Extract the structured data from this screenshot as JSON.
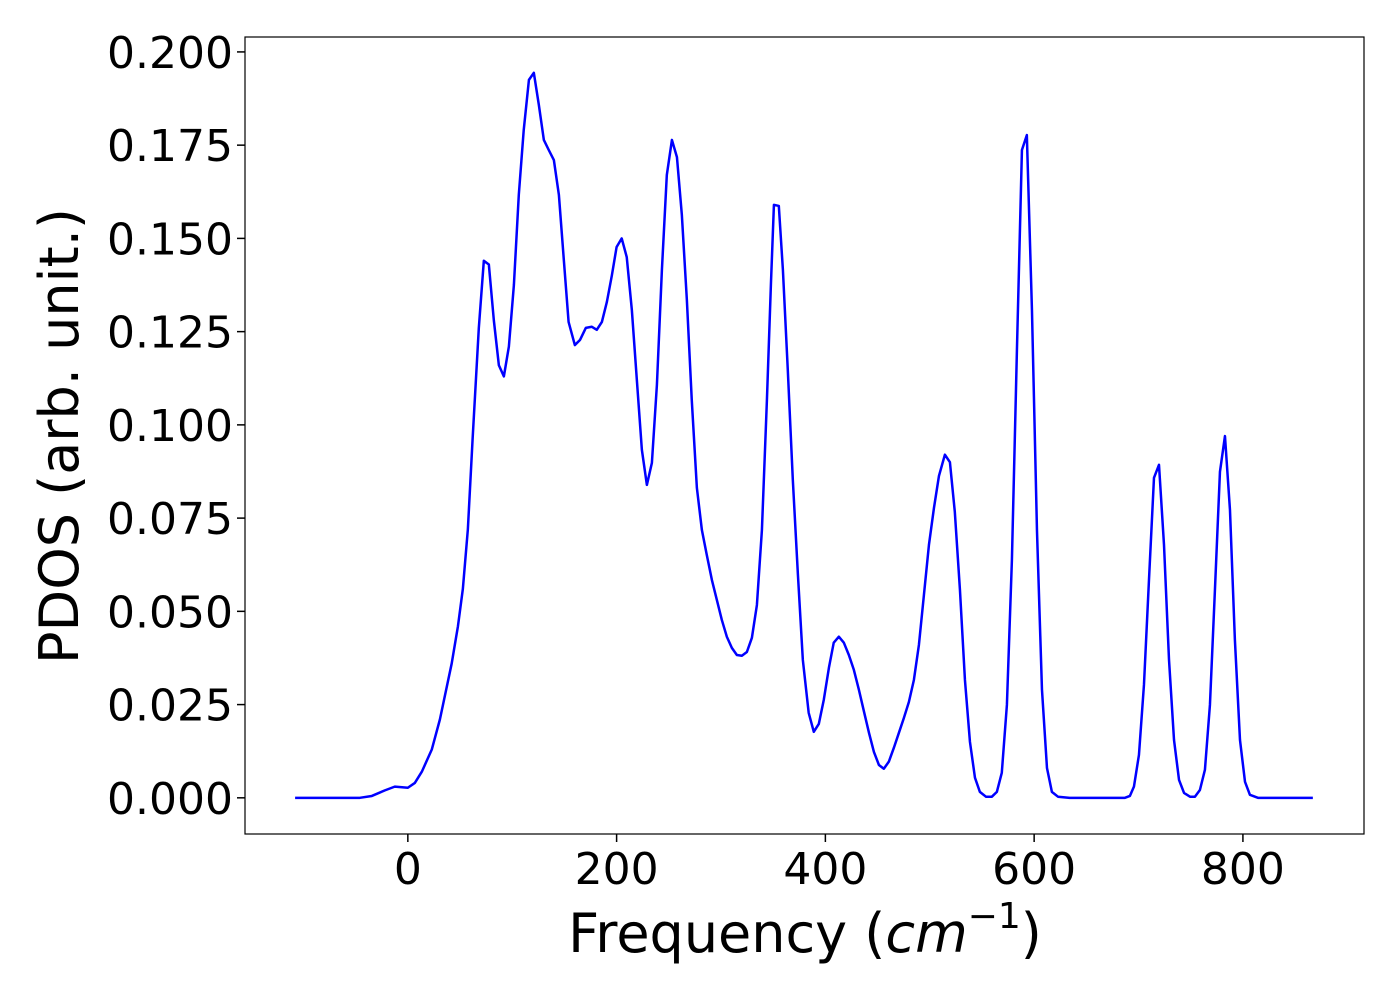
{
  "chart_data": {
    "type": "line",
    "xlabel": [
      "Frequency (",
      "cm",
      "−1",
      ")"
    ],
    "ylabel": "PDOS (arb. unit.)",
    "color": "#0000ff",
    "xlim": [
      -156,
      916
    ],
    "ylim": [
      -0.0097,
      0.204
    ],
    "xticks": [
      0,
      200,
      400,
      600,
      800
    ],
    "yticks": [
      {
        "value": 0,
        "label": "0.000"
      },
      {
        "value": 0.025,
        "label": "0.025"
      },
      {
        "value": 0.05,
        "label": "0.050"
      },
      {
        "value": 0.075,
        "label": "0.075"
      },
      {
        "value": 0.1,
        "label": "0.100"
      },
      {
        "value": 0.125,
        "label": "0.125"
      },
      {
        "value": 0.15,
        "label": "0.150"
      },
      {
        "value": 0.175,
        "label": "0.175"
      },
      {
        "value": 0.2,
        "label": "0.200"
      }
    ],
    "x": [
      -108,
      -46,
      -34.5,
      -22,
      -12.5,
      0,
      6.7,
      13.4,
      23,
      30.7,
      42,
      48,
      52.7,
      57.5,
      62,
      68,
      72.8,
      77.6,
      82.4,
      87.2,
      92,
      96.8,
      101.6,
      106.3,
      111,
      116,
      120.7,
      125.5,
      130.3,
      135,
      139.9,
      144.7,
      149.5,
      154,
      160,
      165,
      170.5,
      176.3,
      181,
      185.9,
      190.7,
      195.4,
      200,
      204.9,
      209.7,
      214.6,
      219.4,
      224.2,
      229,
      233.8,
      238.6,
      243.4,
      248.1,
      253,
      257.8,
      262.5,
      267.3,
      272,
      276.9,
      281.7,
      286.4,
      291.3,
      296,
      300.8,
      305.6,
      310.4,
      315.2,
      320,
      324.8,
      329.6,
      334.4,
      339.2,
      344,
      347.8,
      350.7,
      355.4,
      359.3,
      364,
      368.8,
      373.7,
      378.4,
      384,
      388.9,
      393.7,
      398.5,
      403.4,
      408,
      412.9,
      417.7,
      422.5,
      427.3,
      432.1,
      437,
      441.8,
      446.5,
      451.3,
      456,
      460.8,
      465.6,
      470.4,
      475.2,
      480,
      484.8,
      489.6,
      494.4,
      499.2,
      504,
      508.8,
      514.5,
      519.3,
      524,
      528.9,
      533.7,
      538.5,
      543.3,
      548,
      553.8,
      559.5,
      564.3,
      569,
      573.9,
      578.7,
      583.5,
      588.3,
      593,
      597.9,
      602.7,
      607.5,
      612.3,
      617,
      622.8,
      634,
      687,
      691.7,
      695.6,
      700.4,
      705.2,
      710,
      714.8,
      719.6,
      724.4,
      729.2,
      734,
      738.8,
      743.6,
      749.3,
      754,
      758.8,
      763.6,
      768.4,
      773.2,
      778,
      782.8,
      787.6,
      792.3,
      797.2,
      802,
      806.7,
      814.4,
      867
    ],
    "values": [
      0,
      0,
      0.0005,
      0.002,
      0.003,
      0.0027,
      0.004,
      0.007,
      0.013,
      0.021,
      0.036,
      0.046,
      0.056,
      0.072,
      0.096,
      0.126,
      0.144,
      0.143,
      0.128,
      0.116,
      0.113,
      0.121,
      0.1375,
      0.1617,
      0.179,
      0.1925,
      0.1944,
      0.1858,
      0.1764,
      0.1737,
      0.171,
      0.1617,
      0.144,
      0.1276,
      0.1214,
      0.1228,
      0.126,
      0.1263,
      0.1255,
      0.1276,
      0.133,
      0.14,
      0.1477,
      0.15,
      0.145,
      0.1308,
      0.112,
      0.0933,
      0.0839,
      0.0898,
      0.1107,
      0.1416,
      0.167,
      0.1764,
      0.1718,
      0.1563,
      0.1335,
      0.1067,
      0.0831,
      0.0718,
      0.0651,
      0.0584,
      0.0531,
      0.0477,
      0.0432,
      0.0402,
      0.0383,
      0.0381,
      0.0391,
      0.0429,
      0.0517,
      0.0718,
      0.1067,
      0.1375,
      0.159,
      0.1587,
      0.1416,
      0.1147,
      0.0853,
      0.0598,
      0.037,
      0.0228,
      0.0177,
      0.0198,
      0.0263,
      0.0349,
      0.0416,
      0.0432,
      0.0416,
      0.0383,
      0.0343,
      0.029,
      0.0231,
      0.0174,
      0.0123,
      0.0088,
      0.0078,
      0.0097,
      0.0134,
      0.0174,
      0.0214,
      0.0257,
      0.0316,
      0.041,
      0.0544,
      0.0678,
      0.0777,
      0.0863,
      0.092,
      0.09,
      0.0767,
      0.0558,
      0.0316,
      0.015,
      0.0054,
      0.0016,
      0.0003,
      0.0003,
      0.0016,
      0.0067,
      0.0249,
      0.0638,
      0.12,
      0.1737,
      0.1777,
      0.1308,
      0.0718,
      0.029,
      0.008,
      0.0016,
      0.0003,
      0,
      0,
      0.0005,
      0.003,
      0.0115,
      0.0303,
      0.0584,
      0.0858,
      0.0893,
      0.0678,
      0.037,
      0.0155,
      0.0048,
      0.0013,
      0.0003,
      0.0003,
      0.0021,
      0.0075,
      0.0249,
      0.0558,
      0.0874,
      0.097,
      0.0772,
      0.0424,
      0.0155,
      0.0043,
      0.0008,
      0,
      0
    ]
  }
}
